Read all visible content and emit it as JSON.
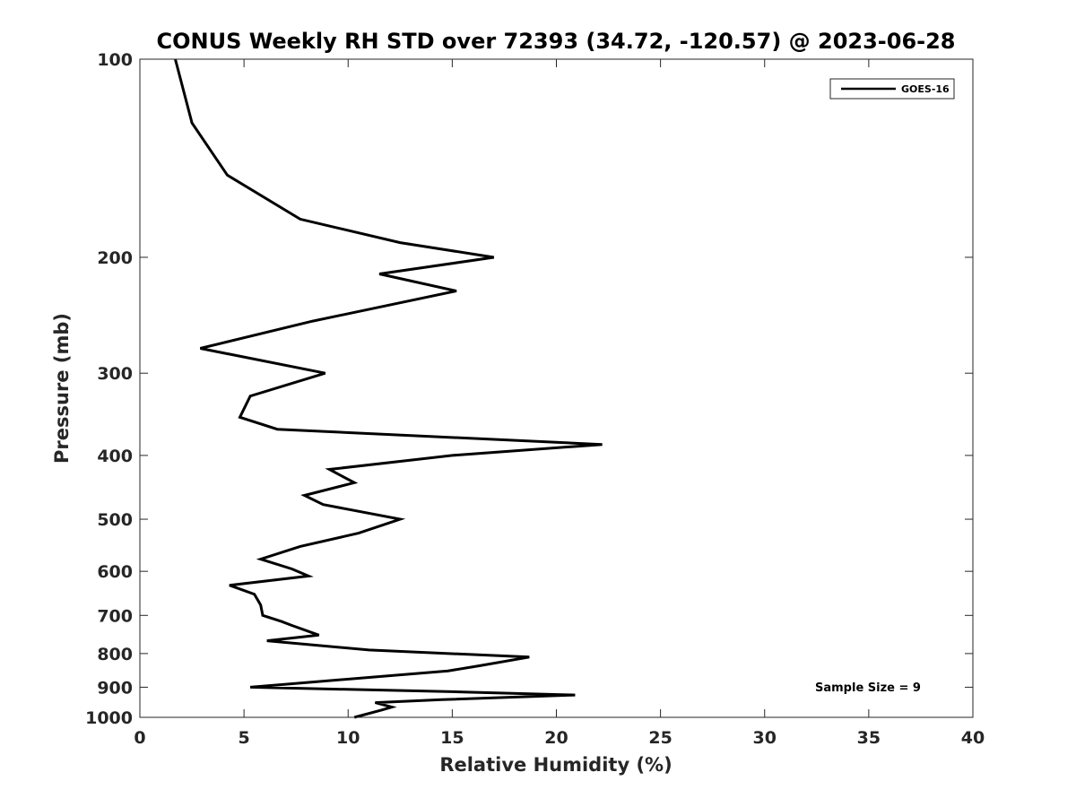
{
  "chart_data": {
    "type": "line",
    "title": "CONUS Weekly RH STD over 72393 (34.72, -120.57) @ 2023-06-28",
    "xlabel": "Relative Humidity (%)",
    "ylabel": "Pressure (mb)",
    "xlim": [
      0,
      40
    ],
    "ylim": [
      100,
      1000
    ],
    "yscale": "log",
    "xticks": [
      0,
      5,
      10,
      15,
      20,
      25,
      30,
      35,
      40
    ],
    "yticks": [
      100,
      200,
      300,
      400,
      500,
      600,
      700,
      800,
      900,
      1000
    ],
    "xtick_labels": [
      "0",
      "5",
      "10",
      "15",
      "20",
      "25",
      "30",
      "35",
      "40"
    ],
    "ytick_labels": [
      "100",
      "200",
      "300",
      "400",
      "500",
      "600",
      "700",
      "800",
      "900",
      "1000"
    ],
    "legend_position": "top-right",
    "series": [
      {
        "name": "GOES-16",
        "color": "#000000",
        "x": [
          1.7,
          2.5,
          4.2,
          7.7,
          12.5,
          17.0,
          11.5,
          15.2,
          8.3,
          2.9,
          8.9,
          5.3,
          4.8,
          6.6,
          22.2,
          15.0,
          9.1,
          10.3,
          7.9,
          8.8,
          12.5,
          10.5,
          7.7,
          5.8,
          7.3,
          8.1,
          4.3,
          5.5,
          5.8,
          5.9,
          6.8,
          7.3,
          8.6,
          6.1,
          11.0,
          18.7,
          16.3,
          14.8,
          5.3,
          15.5,
          20.9,
          14.5,
          11.3,
          12.1,
          11.6,
          10.3
        ],
        "y": [
          100,
          125,
          150,
          175,
          190,
          200,
          212,
          225,
          250,
          275,
          300,
          325,
          350,
          365,
          385,
          400,
          420,
          440,
          460,
          475,
          500,
          525,
          550,
          575,
          595,
          610,
          630,
          650,
          675,
          700,
          715,
          725,
          750,
          765,
          790,
          810,
          835,
          850,
          900,
          915,
          925,
          940,
          950,
          965,
          975,
          1000
        ]
      }
    ],
    "annotation": "Sample Size = 9"
  }
}
